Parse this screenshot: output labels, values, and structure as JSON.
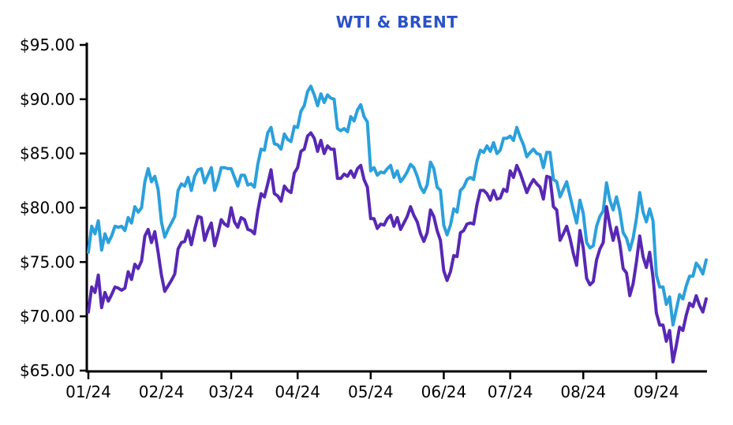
{
  "chart_data": {
    "type": "line",
    "title": "WTI & BRENT",
    "title_color": "#2A52C8",
    "axis_color": "#000000",
    "background_color": "#ffffff",
    "grid": "off",
    "legend": "none",
    "ylim": [
      65,
      95
    ],
    "y_tick_values": [
      95,
      90,
      85,
      80,
      75,
      70,
      65
    ],
    "y_tick_labels": [
      "$95.00",
      "$90.00",
      "$85.00",
      "$80.00",
      "$75.00",
      "$70.00",
      "$65.00"
    ],
    "x_unit": "trading-day index, Jan 2024 through late Sep 2024",
    "x_ticks": [
      {
        "label": "01/24",
        "index": 0
      },
      {
        "label": "02/24",
        "index": 22
      },
      {
        "label": "03/24",
        "index": 43
      },
      {
        "label": "04/24",
        "index": 63
      },
      {
        "label": "05/24",
        "index": 85
      },
      {
        "label": "06/24",
        "index": 107
      },
      {
        "label": "07/24",
        "index": 127
      },
      {
        "label": "08/24",
        "index": 149
      },
      {
        "label": "09/24",
        "index": 171
      }
    ],
    "series": [
      {
        "name": "BRENT",
        "color": "#2BA0DB",
        "values": [
          75.9,
          78.3,
          77.6,
          78.8,
          76.1,
          77.6,
          76.8,
          77.4,
          78.3,
          78.2,
          78.3,
          77.9,
          79.1,
          78.6,
          80.1,
          79.6,
          80.0,
          82.4,
          83.6,
          82.4,
          82.9,
          81.7,
          78.7,
          77.3,
          78.0,
          78.6,
          79.2,
          81.6,
          82.2,
          82.0,
          82.8,
          81.6,
          82.9,
          83.5,
          83.6,
          82.3,
          83.0,
          83.7,
          81.6,
          82.5,
          83.7,
          83.7,
          83.6,
          83.6,
          82.8,
          82.0,
          83.0,
          83.0,
          82.1,
          82.2,
          81.9,
          84.0,
          85.4,
          85.3,
          86.9,
          87.4,
          85.9,
          85.8,
          85.4,
          86.8,
          86.3,
          86.1,
          87.5,
          87.4,
          88.9,
          89.4,
          90.7,
          91.2,
          90.4,
          89.4,
          90.5,
          89.7,
          90.4,
          90.1,
          90.0,
          87.3,
          87.1,
          87.3,
          87.0,
          88.4,
          88.0,
          89.0,
          89.5,
          88.4,
          87.9,
          83.4,
          83.7,
          83.0,
          83.3,
          83.2,
          83.6,
          83.9,
          82.8,
          83.4,
          82.4,
          82.8,
          83.3,
          84.0,
          83.7,
          82.9,
          81.9,
          81.4,
          82.1,
          84.2,
          83.6,
          81.9,
          81.6,
          78.4,
          77.5,
          78.4,
          79.9,
          79.6,
          81.6,
          81.9,
          82.6,
          82.8,
          82.6,
          84.3,
          85.3,
          85.1,
          85.7,
          85.2,
          86.0,
          85.0,
          85.3,
          86.4,
          86.4,
          86.6,
          86.2,
          87.4,
          86.5,
          85.8,
          84.7,
          85.1,
          85.4,
          85.0,
          84.9,
          83.7,
          85.1,
          85.1,
          82.6,
          82.4,
          81.0,
          81.7,
          82.4,
          81.1,
          79.8,
          78.6,
          80.7,
          79.5,
          76.8,
          76.3,
          76.5,
          78.3,
          79.2,
          79.7,
          82.3,
          80.7,
          79.8,
          81.0,
          79.7,
          77.7,
          77.2,
          76.1,
          77.2,
          79.0,
          81.4,
          79.6,
          78.7,
          79.9,
          78.8,
          73.8,
          72.7,
          72.7,
          71.1,
          71.8,
          69.2,
          70.6,
          72.0,
          71.6,
          72.8,
          73.7,
          73.7,
          74.9,
          74.5,
          73.9,
          75.2
        ]
      },
      {
        "name": "WTI",
        "color": "#5828B4",
        "values": [
          70.4,
          72.7,
          72.2,
          73.8,
          70.8,
          72.2,
          71.4,
          72.0,
          72.7,
          72.6,
          72.4,
          72.6,
          74.1,
          73.4,
          74.8,
          74.4,
          75.1,
          77.4,
          78.0,
          76.8,
          77.8,
          75.9,
          73.8,
          72.3,
          72.8,
          73.3,
          73.9,
          76.2,
          76.8,
          76.9,
          77.9,
          76.6,
          78.0,
          79.2,
          79.1,
          77.0,
          77.9,
          78.6,
          76.5,
          77.6,
          78.9,
          78.5,
          78.3,
          80.0,
          78.7,
          78.2,
          79.1,
          78.9,
          78.0,
          77.9,
          77.6,
          79.7,
          81.3,
          81.0,
          82.2,
          83.5,
          81.3,
          81.1,
          80.6,
          82.0,
          81.6,
          81.4,
          83.2,
          83.7,
          85.2,
          85.4,
          86.6,
          86.9,
          86.4,
          85.2,
          86.2,
          85.0,
          85.7,
          85.4,
          85.4,
          82.7,
          82.7,
          83.1,
          82.9,
          83.4,
          82.8,
          83.6,
          83.9,
          82.6,
          81.9,
          79.0,
          79.0,
          78.1,
          78.5,
          78.4,
          79.0,
          79.3,
          78.3,
          79.1,
          78.0,
          78.6,
          79.2,
          80.1,
          79.3,
          78.7,
          77.6,
          76.9,
          77.7,
          79.8,
          79.2,
          77.9,
          77.0,
          74.2,
          73.3,
          74.1,
          75.6,
          75.5,
          77.7,
          77.9,
          78.5,
          78.6,
          78.5,
          80.3,
          81.6,
          81.6,
          81.3,
          80.7,
          81.6,
          80.8,
          80.9,
          81.7,
          81.5,
          83.4,
          82.8,
          83.9,
          83.2,
          82.3,
          81.4,
          82.1,
          82.6,
          82.2,
          81.9,
          80.8,
          82.9,
          82.8,
          80.1,
          79.8,
          77.0,
          77.6,
          78.3,
          77.2,
          75.8,
          74.7,
          77.9,
          76.3,
          73.5,
          72.9,
          73.2,
          75.2,
          76.2,
          76.8,
          80.1,
          78.4,
          77.0,
          78.2,
          76.7,
          74.4,
          74.0,
          71.9,
          73.0,
          75.0,
          77.4,
          75.5,
          74.5,
          75.9,
          73.6,
          70.3,
          69.2,
          69.2,
          67.7,
          68.7,
          65.8,
          67.3,
          69.0,
          68.7,
          70.1,
          71.2,
          70.9,
          71.9,
          71.0,
          70.4,
          71.6
        ]
      }
    ]
  }
}
